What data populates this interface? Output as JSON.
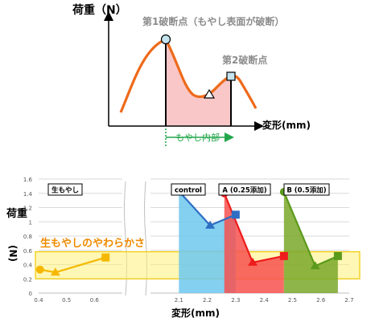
{
  "schematic": {
    "y_label": "荷重（N）",
    "x_label": "変形(mm)",
    "first_break": "第1破断点（もやし表面が破断）",
    "second_break": "第2破断点",
    "inner_label": "もやし内部",
    "colors": {
      "curve": "#ee6a1b",
      "fill": "#f9c7c7",
      "green": "#22a64a",
      "gray": "#8c8c8c",
      "marker_fill": "#c4e4ef"
    }
  },
  "chart_data": {
    "type": "area",
    "y_label_top": "荷重",
    "y_label_bottom": "(N)",
    "xlabel": "変形(mm)",
    "band_label": "生もやしのやわらかさ",
    "band_range": [
      0.2,
      0.58
    ],
    "ylim": [
      0,
      1.6
    ],
    "yticks": [
      "0",
      "0.2",
      "0.4",
      "0.6",
      "0.8",
      "1",
      "1.2",
      "1.4",
      "1.6"
    ],
    "panels": [
      {
        "xlim": [
          0.4,
          0.7
        ],
        "xticks": [
          "0.4",
          "0.5",
          "0.6"
        ],
        "legend_box": "生もやし",
        "series": [
          {
            "name": "生もやし",
            "color": "#f5b800",
            "x": [
              0.405,
              0.46,
              0.64
            ],
            "y": [
              0.33,
              0.29,
              0.5
            ],
            "markers": [
              "circle",
              "triangle",
              "square"
            ],
            "fill": false
          }
        ]
      },
      {
        "xlim": [
          2.0,
          2.7
        ],
        "xticks": [
          "2.1",
          "2.2",
          "2.3",
          "2.4",
          "2.5",
          "2.6",
          "2.7"
        ],
        "legend_boxes": [
          "control",
          "A (0.25添加)",
          "B (0.5添加)"
        ],
        "series": [
          {
            "name": "control",
            "color": "#2e6ec4",
            "fill_color": "#6dc8ef",
            "x": [
              2.1,
              2.21,
              2.3
            ],
            "y": [
              1.43,
              0.95,
              1.1
            ],
            "markers": [
              "circle",
              "triangle",
              "square"
            ]
          },
          {
            "name": "A (0.25添加)",
            "color": "#ee1c1c",
            "fill_color": "#f7514f",
            "x": [
              2.26,
              2.36,
              2.47
            ],
            "y": [
              1.4,
              0.43,
              0.52
            ],
            "markers": [
              "circle",
              "triangle",
              "square"
            ]
          },
          {
            "name": "B (0.5添加)",
            "color": "#5b9a1a",
            "fill_color": "#7aa82a",
            "x": [
              2.47,
              2.58,
              2.66
            ],
            "y": [
              1.42,
              0.38,
              0.52
            ],
            "markers": [
              "circle",
              "triangle",
              "square"
            ]
          }
        ]
      }
    ]
  }
}
